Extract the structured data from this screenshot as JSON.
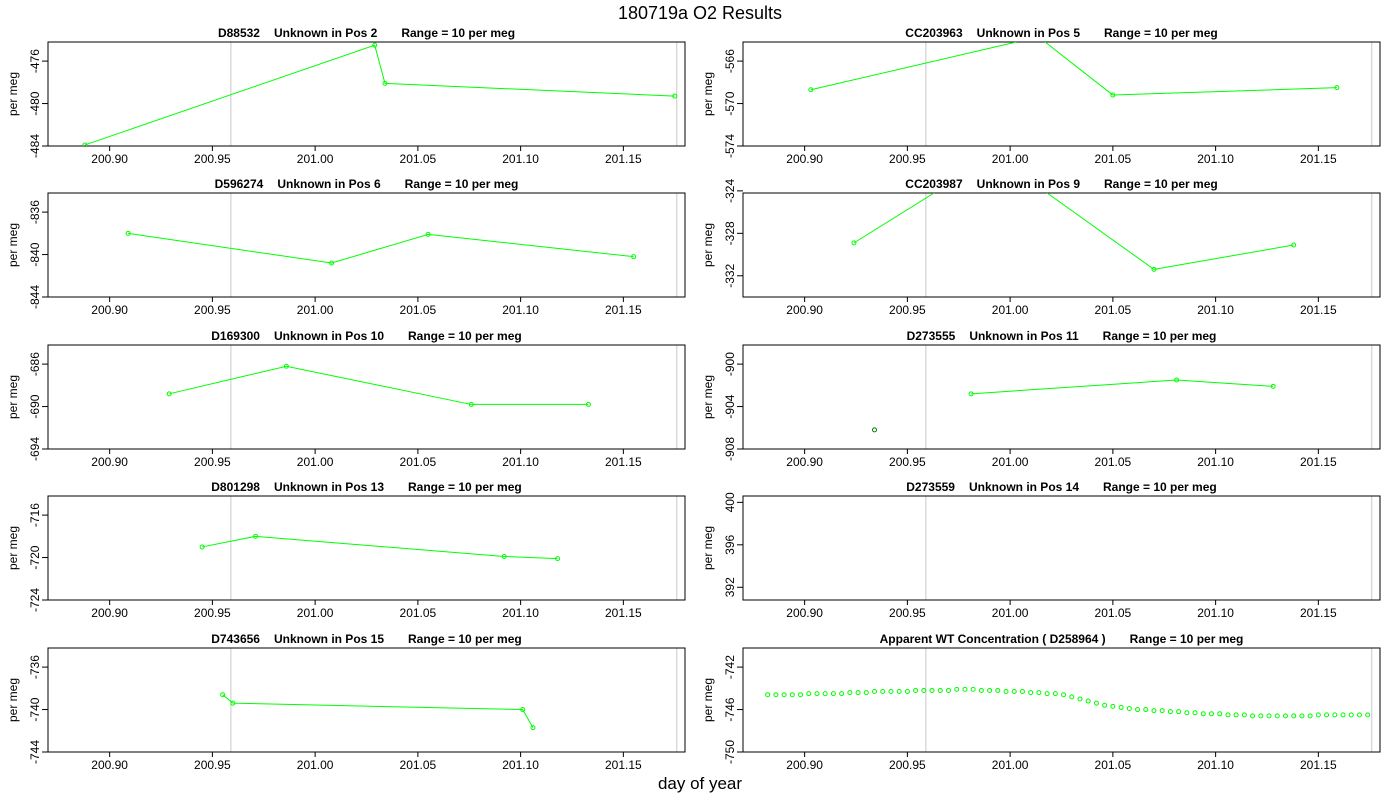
{
  "page": {
    "title": "180719a  O2 Results",
    "xlabel": "day of year"
  },
  "chart_data": [
    {
      "type": "line",
      "sample": "D88532",
      "label": "Unknown in Pos 2",
      "range": "Range = 10 per meg",
      "ylabel": "per meg",
      "xlim": [
        200.87,
        201.18
      ],
      "ylim": [
        -484,
        -474.2
      ],
      "yticks": [
        -484,
        -480,
        -476
      ],
      "xticks": [
        200.9,
        200.95,
        201.0,
        201.05,
        201.1,
        201.15
      ],
      "vlines": [
        200.959,
        201.176
      ],
      "series": [
        {
          "x": [
            200.888,
            201.029,
            201.034,
            201.175
          ],
          "y": [
            -483.9,
            -474.5,
            -478.1,
            -479.3
          ],
          "color": "#00ff00",
          "line": true
        }
      ]
    },
    {
      "type": "line",
      "sample": "CC203963",
      "label": "Unknown in Pos 5",
      "range": "Range = 10 per meg",
      "ylabel": "per meg",
      "xlim": [
        200.87,
        201.18
      ],
      "ylim": [
        -574,
        -564.2
      ],
      "yticks": [
        -574,
        -570,
        -566
      ],
      "xticks": [
        200.9,
        200.95,
        201.0,
        201.05,
        201.1,
        201.15
      ],
      "vlines": [
        200.959,
        201.176
      ],
      "series": [
        {
          "x": [
            200.903,
            201.05,
            201.159
          ],
          "y": [
            -568.7,
            -569.2,
            -568.5
          ],
          "color": "#00ff00",
          "line": true,
          "segments_out": [
            [
              200.903,
              -568.7,
              201.003,
              -564.2
            ],
            [
              201.017,
              -564.2,
              201.05,
              -569.2
            ]
          ]
        }
      ]
    },
    {
      "type": "line",
      "sample": "D596274",
      "label": "Unknown in Pos 6",
      "range": "Range = 10 per meg",
      "ylabel": "per meg",
      "xlim": [
        200.87,
        201.18
      ],
      "ylim": [
        -844,
        -834.2
      ],
      "yticks": [
        -844,
        -840,
        -836
      ],
      "xticks": [
        200.9,
        200.95,
        201.0,
        201.05,
        201.1,
        201.15
      ],
      "vlines": [
        200.959,
        201.176
      ],
      "series": [
        {
          "x": [
            200.909,
            201.008,
            201.055,
            201.155
          ],
          "y": [
            -838.0,
            -840.8,
            -838.1,
            -840.2
          ],
          "color": "#00ff00",
          "line": true
        }
      ]
    },
    {
      "type": "line",
      "sample": "CC203987",
      "label": "Unknown in Pos 9",
      "range": "Range = 10 per meg",
      "ylabel": "per meg",
      "xlim": [
        200.87,
        201.18
      ],
      "ylim": [
        -334,
        -324.2
      ],
      "yticks": [
        -332,
        -328,
        -324
      ],
      "xticks": [
        200.9,
        200.95,
        201.0,
        201.05,
        201.1,
        201.15
      ],
      "vlines": [
        200.959,
        201.176
      ],
      "series": [
        {
          "x": [
            200.924,
            201.07,
            201.138
          ],
          "y": [
            -328.9,
            -331.4,
            -329.1
          ],
          "color": "#00ff00",
          "line": true,
          "segments_out": [
            [
              200.924,
              -328.9,
              200.963,
              -324.2
            ],
            [
              201.018,
              -324.2,
              201.07,
              -331.4
            ]
          ]
        }
      ]
    },
    {
      "type": "line",
      "sample": "D169300",
      "label": "Unknown in Pos 10",
      "range": "Range = 10 per meg",
      "ylabel": "per meg",
      "xlim": [
        200.87,
        201.18
      ],
      "ylim": [
        -694,
        -684.2
      ],
      "yticks": [
        -694,
        -690,
        -686
      ],
      "xticks": [
        200.9,
        200.95,
        201.0,
        201.05,
        201.1,
        201.15
      ],
      "vlines": [
        200.959,
        201.176
      ],
      "series": [
        {
          "x": [
            200.929,
            200.986,
            201.076,
            201.133
          ],
          "y": [
            -688.8,
            -686.2,
            -689.8,
            -689.8
          ],
          "color": "#00ff00",
          "line": true
        }
      ]
    },
    {
      "type": "line",
      "sample": "D273555",
      "label": "Unknown in Pos 11",
      "range": "Range = 10 per meg",
      "ylabel": "per meg",
      "xlim": [
        200.87,
        201.18
      ],
      "ylim": [
        -908,
        -898.2
      ],
      "yticks": [
        -908,
        -904,
        -900
      ],
      "xticks": [
        200.9,
        200.95,
        201.0,
        201.05,
        201.1,
        201.15
      ],
      "vlines": [
        200.959,
        201.176
      ],
      "series": [
        {
          "x": [
            200.981,
            201.081,
            201.128
          ],
          "y": [
            -902.8,
            -901.5,
            -902.1
          ],
          "color": "#00ff00",
          "line": true
        },
        {
          "x": [
            200.934
          ],
          "y": [
            -906.2
          ],
          "color": "#007700",
          "line": false
        }
      ]
    },
    {
      "type": "line",
      "sample": "D801298",
      "label": "Unknown in Pos 13",
      "range": "Range = 10 per meg",
      "ylabel": "per meg",
      "xlim": [
        200.87,
        201.18
      ],
      "ylim": [
        -724,
        -714.2
      ],
      "yticks": [
        -724,
        -720,
        -716
      ],
      "xticks": [
        200.9,
        200.95,
        201.0,
        201.05,
        201.1,
        201.15
      ],
      "vlines": [
        200.959,
        201.176
      ],
      "series": [
        {
          "x": [
            200.945,
            200.971,
            201.092,
            201.118
          ],
          "y": [
            -719.0,
            -718.0,
            -719.9,
            -720.1
          ],
          "color": "#00ff00",
          "line": true
        }
      ]
    },
    {
      "type": "line",
      "sample": "D273559",
      "label": "Unknown in Pos 14",
      "range": "Range = 10 per meg",
      "ylabel": "per meg",
      "xlim": [
        200.87,
        201.18
      ],
      "ylim": [
        390.8,
        400.6
      ],
      "yticks": [
        392,
        396,
        400
      ],
      "xticks": [
        200.9,
        200.95,
        201.0,
        201.05,
        201.1,
        201.15
      ],
      "vlines": [
        200.959,
        201.176
      ],
      "series": []
    },
    {
      "type": "line",
      "sample": "D743656",
      "label": "Unknown in Pos 15",
      "range": "Range = 10 per meg",
      "ylabel": "per meg",
      "xlim": [
        200.87,
        201.18
      ],
      "ylim": [
        -744,
        -734.2
      ],
      "yticks": [
        -744,
        -740,
        -736
      ],
      "xticks": [
        200.9,
        200.95,
        201.0,
        201.05,
        201.1,
        201.15
      ],
      "vlines": [
        200.959,
        201.176
      ],
      "series": [
        {
          "x": [
            200.955,
            200.96,
            201.101,
            201.106
          ],
          "y": [
            -738.6,
            -739.4,
            -740.0,
            -741.7
          ],
          "color": "#00ff00",
          "line": true
        }
      ]
    },
    {
      "type": "line",
      "sample": "D258964",
      "label": "Apparent WT Concentration ( D258964 )",
      "range": "Range = 10 per meg",
      "ylabel": "per meg",
      "xlim": [
        200.87,
        201.18
      ],
      "ylim": [
        -750,
        -740.2
      ],
      "yticks": [
        -750,
        -746,
        -742
      ],
      "xticks": [
        200.9,
        200.95,
        201.0,
        201.05,
        201.1,
        201.15
      ],
      "vlines": [
        200.959,
        201.176
      ],
      "series": [
        {
          "x": [
            200.882,
            200.886,
            200.89,
            200.894,
            200.898,
            200.902,
            200.906,
            200.91,
            200.914,
            200.918,
            200.922,
            200.926,
            200.93,
            200.934,
            200.938,
            200.942,
            200.946,
            200.95,
            200.954,
            200.958,
            200.962,
            200.966,
            200.97,
            200.974,
            200.978,
            200.982,
            200.986,
            200.99,
            200.994,
            200.998,
            201.002,
            201.006,
            201.01,
            201.014,
            201.018,
            201.022,
            201.026,
            201.03,
            201.034,
            201.038,
            201.042,
            201.046,
            201.05,
            201.054,
            201.058,
            201.062,
            201.066,
            201.07,
            201.074,
            201.078,
            201.082,
            201.086,
            201.09,
            201.094,
            201.098,
            201.102,
            201.106,
            201.11,
            201.114,
            201.118,
            201.122,
            201.126,
            201.13,
            201.134,
            201.138,
            201.142,
            201.146,
            201.15,
            201.154,
            201.158,
            201.162,
            201.166,
            201.17,
            201.174
          ],
          "y": [
            -744.6,
            -744.6,
            -744.6,
            -744.6,
            -744.6,
            -744.5,
            -744.5,
            -744.5,
            -744.5,
            -744.5,
            -744.4,
            -744.4,
            -744.4,
            -744.3,
            -744.3,
            -744.3,
            -744.3,
            -744.3,
            -744.2,
            -744.2,
            -744.2,
            -744.2,
            -744.2,
            -744.1,
            -744.1,
            -744.1,
            -744.2,
            -744.2,
            -744.2,
            -744.3,
            -744.3,
            -744.3,
            -744.4,
            -744.4,
            -744.5,
            -744.5,
            -744.6,
            -744.8,
            -745.0,
            -745.2,
            -745.4,
            -745.6,
            -745.7,
            -745.8,
            -745.9,
            -746.0,
            -746.0,
            -746.1,
            -746.1,
            -746.2,
            -746.2,
            -746.3,
            -746.3,
            -746.4,
            -746.4,
            -746.4,
            -746.5,
            -746.5,
            -746.5,
            -746.6,
            -746.6,
            -746.6,
            -746.6,
            -746.6,
            -746.6,
            -746.6,
            -746.6,
            -746.5,
            -746.5,
            -746.5,
            -746.5,
            -746.5,
            -746.5,
            -746.5
          ],
          "color": "#00ff00",
          "line": false
        }
      ]
    }
  ]
}
